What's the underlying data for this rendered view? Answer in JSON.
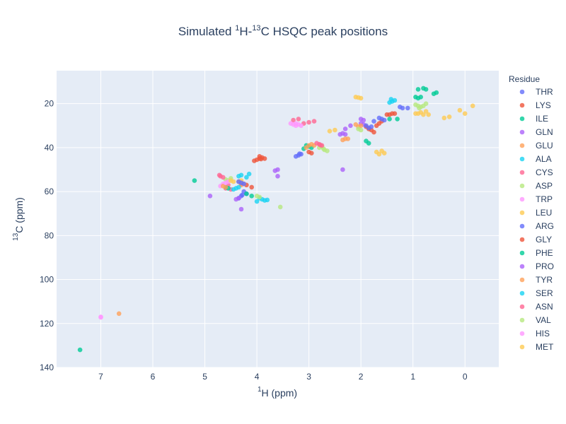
{
  "chart_data": {
    "type": "scatter",
    "title_main": "Simulated ",
    "title_sup1": "1",
    "title_mid": "H-",
    "title_sup2": "13",
    "title_end": "C HSQC peak positions",
    "xlabel_sup": "1",
    "xlabel_text": "H (ppm)",
    "ylabel_sup": "13",
    "ylabel_text": "C (ppm)",
    "x_reversed": true,
    "y_reversed": true,
    "xlim": [
      7.85,
      -0.65
    ],
    "ylim": [
      140,
      5
    ],
    "x_ticks": [
      7,
      6,
      5,
      4,
      3,
      2,
      1,
      0
    ],
    "x_tick_labels": [
      "7",
      "6",
      "5",
      "4",
      "3",
      "2",
      "1",
      "0"
    ],
    "y_ticks": [
      20,
      40,
      60,
      80,
      100,
      120,
      140
    ],
    "y_tick_labels": [
      "20",
      "40",
      "60",
      "80",
      "100",
      "120",
      "140"
    ],
    "grid": true,
    "legend_title": "Residue",
    "legend_position": "right",
    "plot_background": "#e5ecf6",
    "series": [
      {
        "name": "THR",
        "color": "#636efa",
        "points": [
          [
            4.3,
            62
          ],
          [
            4.25,
            60
          ],
          [
            4.35,
            63
          ],
          [
            4.2,
            61
          ],
          [
            1.2,
            22
          ],
          [
            1.1,
            22
          ],
          [
            1.25,
            21.5
          ],
          [
            4.28,
            61.5
          ]
        ]
      },
      {
        "name": "LYS",
        "color": "#ef553b",
        "points": [
          [
            4.3,
            56.5
          ],
          [
            4.1,
            58
          ],
          [
            1.8,
            32
          ],
          [
            1.75,
            33
          ],
          [
            1.85,
            31.5
          ],
          [
            1.65,
            29
          ],
          [
            1.45,
            25
          ],
          [
            1.4,
            24.5
          ],
          [
            1.5,
            25
          ],
          [
            3.0,
            42
          ],
          [
            2.95,
            42.5
          ],
          [
            1.6,
            28
          ],
          [
            1.9,
            30.5
          ],
          [
            4.2,
            57
          ],
          [
            1.35,
            24.5
          ],
          [
            1.7,
            30
          ]
        ]
      },
      {
        "name": "ILE",
        "color": "#00cc96",
        "points": [
          [
            4.2,
            61
          ],
          [
            4.1,
            62
          ],
          [
            1.9,
            37
          ],
          [
            1.85,
            38
          ],
          [
            1.45,
            27
          ],
          [
            1.3,
            27
          ],
          [
            0.9,
            17.5
          ],
          [
            0.85,
            17
          ],
          [
            0.8,
            13
          ],
          [
            0.75,
            13.5
          ],
          [
            0.9,
            13.5
          ],
          [
            0.95,
            17
          ],
          [
            0.55,
            15
          ],
          [
            0.6,
            15.5
          ]
        ]
      },
      {
        "name": "GLN",
        "color": "#ab63fa",
        "points": [
          [
            4.3,
            56
          ],
          [
            4.35,
            55.5
          ],
          [
            2.0,
            29
          ],
          [
            1.95,
            29.5
          ],
          [
            2.3,
            34
          ],
          [
            2.35,
            33.5
          ],
          [
            2.4,
            34
          ],
          [
            2.2,
            30
          ]
        ]
      },
      {
        "name": "GLU",
        "color": "#ffa15a",
        "points": [
          [
            4.25,
            56.5
          ],
          [
            4.3,
            57
          ],
          [
            2.0,
            30
          ],
          [
            2.1,
            29.5
          ],
          [
            2.3,
            36
          ],
          [
            2.35,
            36.5
          ],
          [
            2.25,
            36
          ],
          [
            2.05,
            30.5
          ]
        ]
      },
      {
        "name": "ALA",
        "color": "#19d3f3",
        "points": [
          [
            4.3,
            52.5
          ],
          [
            4.15,
            52
          ],
          [
            4.35,
            53
          ],
          [
            1.4,
            19
          ],
          [
            1.35,
            18.5
          ],
          [
            1.45,
            19.5
          ],
          [
            4.2,
            53.5
          ],
          [
            1.42,
            18
          ]
        ]
      },
      {
        "name": "CYS",
        "color": "#ff6692",
        "points": [
          [
            4.6,
            58.5
          ],
          [
            4.5,
            59
          ],
          [
            3.0,
            28.5
          ],
          [
            2.9,
            28
          ],
          [
            3.1,
            29
          ],
          [
            3.2,
            27
          ],
          [
            3.3,
            27.5
          ],
          [
            4.55,
            57
          ]
        ]
      },
      {
        "name": "ASP",
        "color": "#b6e880",
        "points": [
          [
            4.6,
            54.5
          ],
          [
            4.55,
            55
          ],
          [
            2.7,
            41
          ],
          [
            2.65,
            41.5
          ],
          [
            2.8,
            40
          ],
          [
            2.75,
            39.5
          ],
          [
            4.5,
            54
          ],
          [
            2.72,
            40.5
          ]
        ]
      },
      {
        "name": "TRP",
        "color": "#ff97ff",
        "points": [
          [
            4.7,
            57.5
          ],
          [
            4.65,
            56.5
          ],
          [
            3.3,
            29.5
          ],
          [
            3.35,
            29
          ],
          [
            7.0,
            117
          ],
          [
            3.25,
            30
          ]
        ]
      },
      {
        "name": "LEU",
        "color": "#fecb52",
        "points": [
          [
            4.3,
            55
          ],
          [
            4.35,
            55.5
          ],
          [
            1.7,
            42
          ],
          [
            1.6,
            41.5
          ],
          [
            1.55,
            42.5
          ],
          [
            1.65,
            43
          ],
          [
            0.9,
            24.5
          ],
          [
            0.85,
            24
          ],
          [
            0.8,
            25
          ],
          [
            0.95,
            24.5
          ],
          [
            0.7,
            25
          ],
          [
            0.75,
            23.5
          ]
        ]
      },
      {
        "name": "ARG",
        "color": "#636efa",
        "points": [
          [
            4.3,
            56
          ],
          [
            4.25,
            56.5
          ],
          [
            1.8,
            30.5
          ],
          [
            1.85,
            31
          ],
          [
            1.6,
            27
          ],
          [
            1.65,
            26.5
          ],
          [
            3.2,
            43.5
          ],
          [
            3.15,
            43
          ],
          [
            3.25,
            44
          ],
          [
            4.35,
            55.5
          ],
          [
            1.75,
            28
          ],
          [
            3.18,
            42.8
          ],
          [
            1.55,
            27.5
          ],
          [
            1.9,
            30
          ]
        ]
      },
      {
        "name": "GLY",
        "color": "#ef553b",
        "points": [
          [
            3.95,
            45
          ],
          [
            4.0,
            45.5
          ],
          [
            3.9,
            44.5
          ],
          [
            4.05,
            46
          ],
          [
            3.85,
            45
          ],
          [
            3.95,
            44
          ],
          [
            3.92,
            45.2
          ]
        ]
      },
      {
        "name": "PHE",
        "color": "#00cc96",
        "points": [
          [
            4.6,
            58
          ],
          [
            4.55,
            58.5
          ],
          [
            3.05,
            39
          ],
          [
            3.0,
            39.5
          ],
          [
            2.95,
            40
          ],
          [
            3.1,
            40.5
          ],
          [
            7.4,
            132
          ],
          [
            5.2,
            55
          ]
        ]
      },
      {
        "name": "PRO",
        "color": "#ab63fa",
        "points": [
          [
            4.4,
            63.5
          ],
          [
            4.35,
            63
          ],
          [
            2.3,
            31.5
          ],
          [
            2.0,
            27
          ],
          [
            1.95,
            27.5
          ],
          [
            3.6,
            50
          ],
          [
            3.65,
            50.5
          ],
          [
            4.3,
            68
          ],
          [
            4.9,
            62
          ],
          [
            3.6,
            53
          ],
          [
            2.35,
            50
          ]
        ]
      },
      {
        "name": "TYR",
        "color": "#ffa15a",
        "points": [
          [
            4.6,
            58
          ],
          [
            4.65,
            57.5
          ],
          [
            3.0,
            39
          ],
          [
            2.95,
            38.5
          ],
          [
            3.05,
            40
          ],
          [
            6.65,
            115.5
          ],
          [
            2.9,
            39
          ]
        ]
      },
      {
        "name": "SER",
        "color": "#19d3f3",
        "points": [
          [
            4.4,
            58.5
          ],
          [
            4.45,
            59
          ],
          [
            3.9,
            63.5
          ],
          [
            3.85,
            64
          ],
          [
            3.95,
            63
          ],
          [
            4.0,
            64.5
          ],
          [
            3.8,
            63.8
          ],
          [
            4.35,
            58
          ]
        ]
      },
      {
        "name": "ASN",
        "color": "#ff6692",
        "points": [
          [
            4.7,
            53
          ],
          [
            4.65,
            53.5
          ],
          [
            2.8,
            38.5
          ],
          [
            2.75,
            39
          ],
          [
            2.85,
            38
          ],
          [
            4.72,
            52.5
          ],
          [
            2.78,
            38.8
          ]
        ]
      },
      {
        "name": "VAL",
        "color": "#b6e880",
        "points": [
          [
            4.0,
            62
          ],
          [
            3.95,
            62.5
          ],
          [
            2.0,
            32
          ],
          [
            2.05,
            31.5
          ],
          [
            0.9,
            21
          ],
          [
            0.85,
            21.5
          ],
          [
            0.95,
            20.5
          ],
          [
            0.8,
            21
          ],
          [
            0.75,
            20
          ],
          [
            3.55,
            67
          ],
          [
            0.88,
            22
          ]
        ]
      },
      {
        "name": "HIS",
        "color": "#ff97ff",
        "points": [
          [
            4.6,
            56
          ],
          [
            4.55,
            55.5
          ],
          [
            3.2,
            29.5
          ],
          [
            3.15,
            30
          ],
          [
            3.25,
            29
          ],
          [
            7.0,
            117.2
          ]
        ]
      },
      {
        "name": "MET",
        "color": "#fecb52",
        "points": [
          [
            4.5,
            55
          ],
          [
            4.45,
            55.5
          ],
          [
            2.5,
            32
          ],
          [
            2.6,
            32.5
          ],
          [
            2.1,
            17
          ],
          [
            2.0,
            17.5
          ],
          [
            2.05,
            17.2
          ],
          [
            0.1,
            23
          ],
          [
            -0.15,
            21
          ],
          [
            0.0,
            24.5
          ],
          [
            0.3,
            26
          ],
          [
            0.4,
            26.5
          ]
        ]
      }
    ]
  }
}
